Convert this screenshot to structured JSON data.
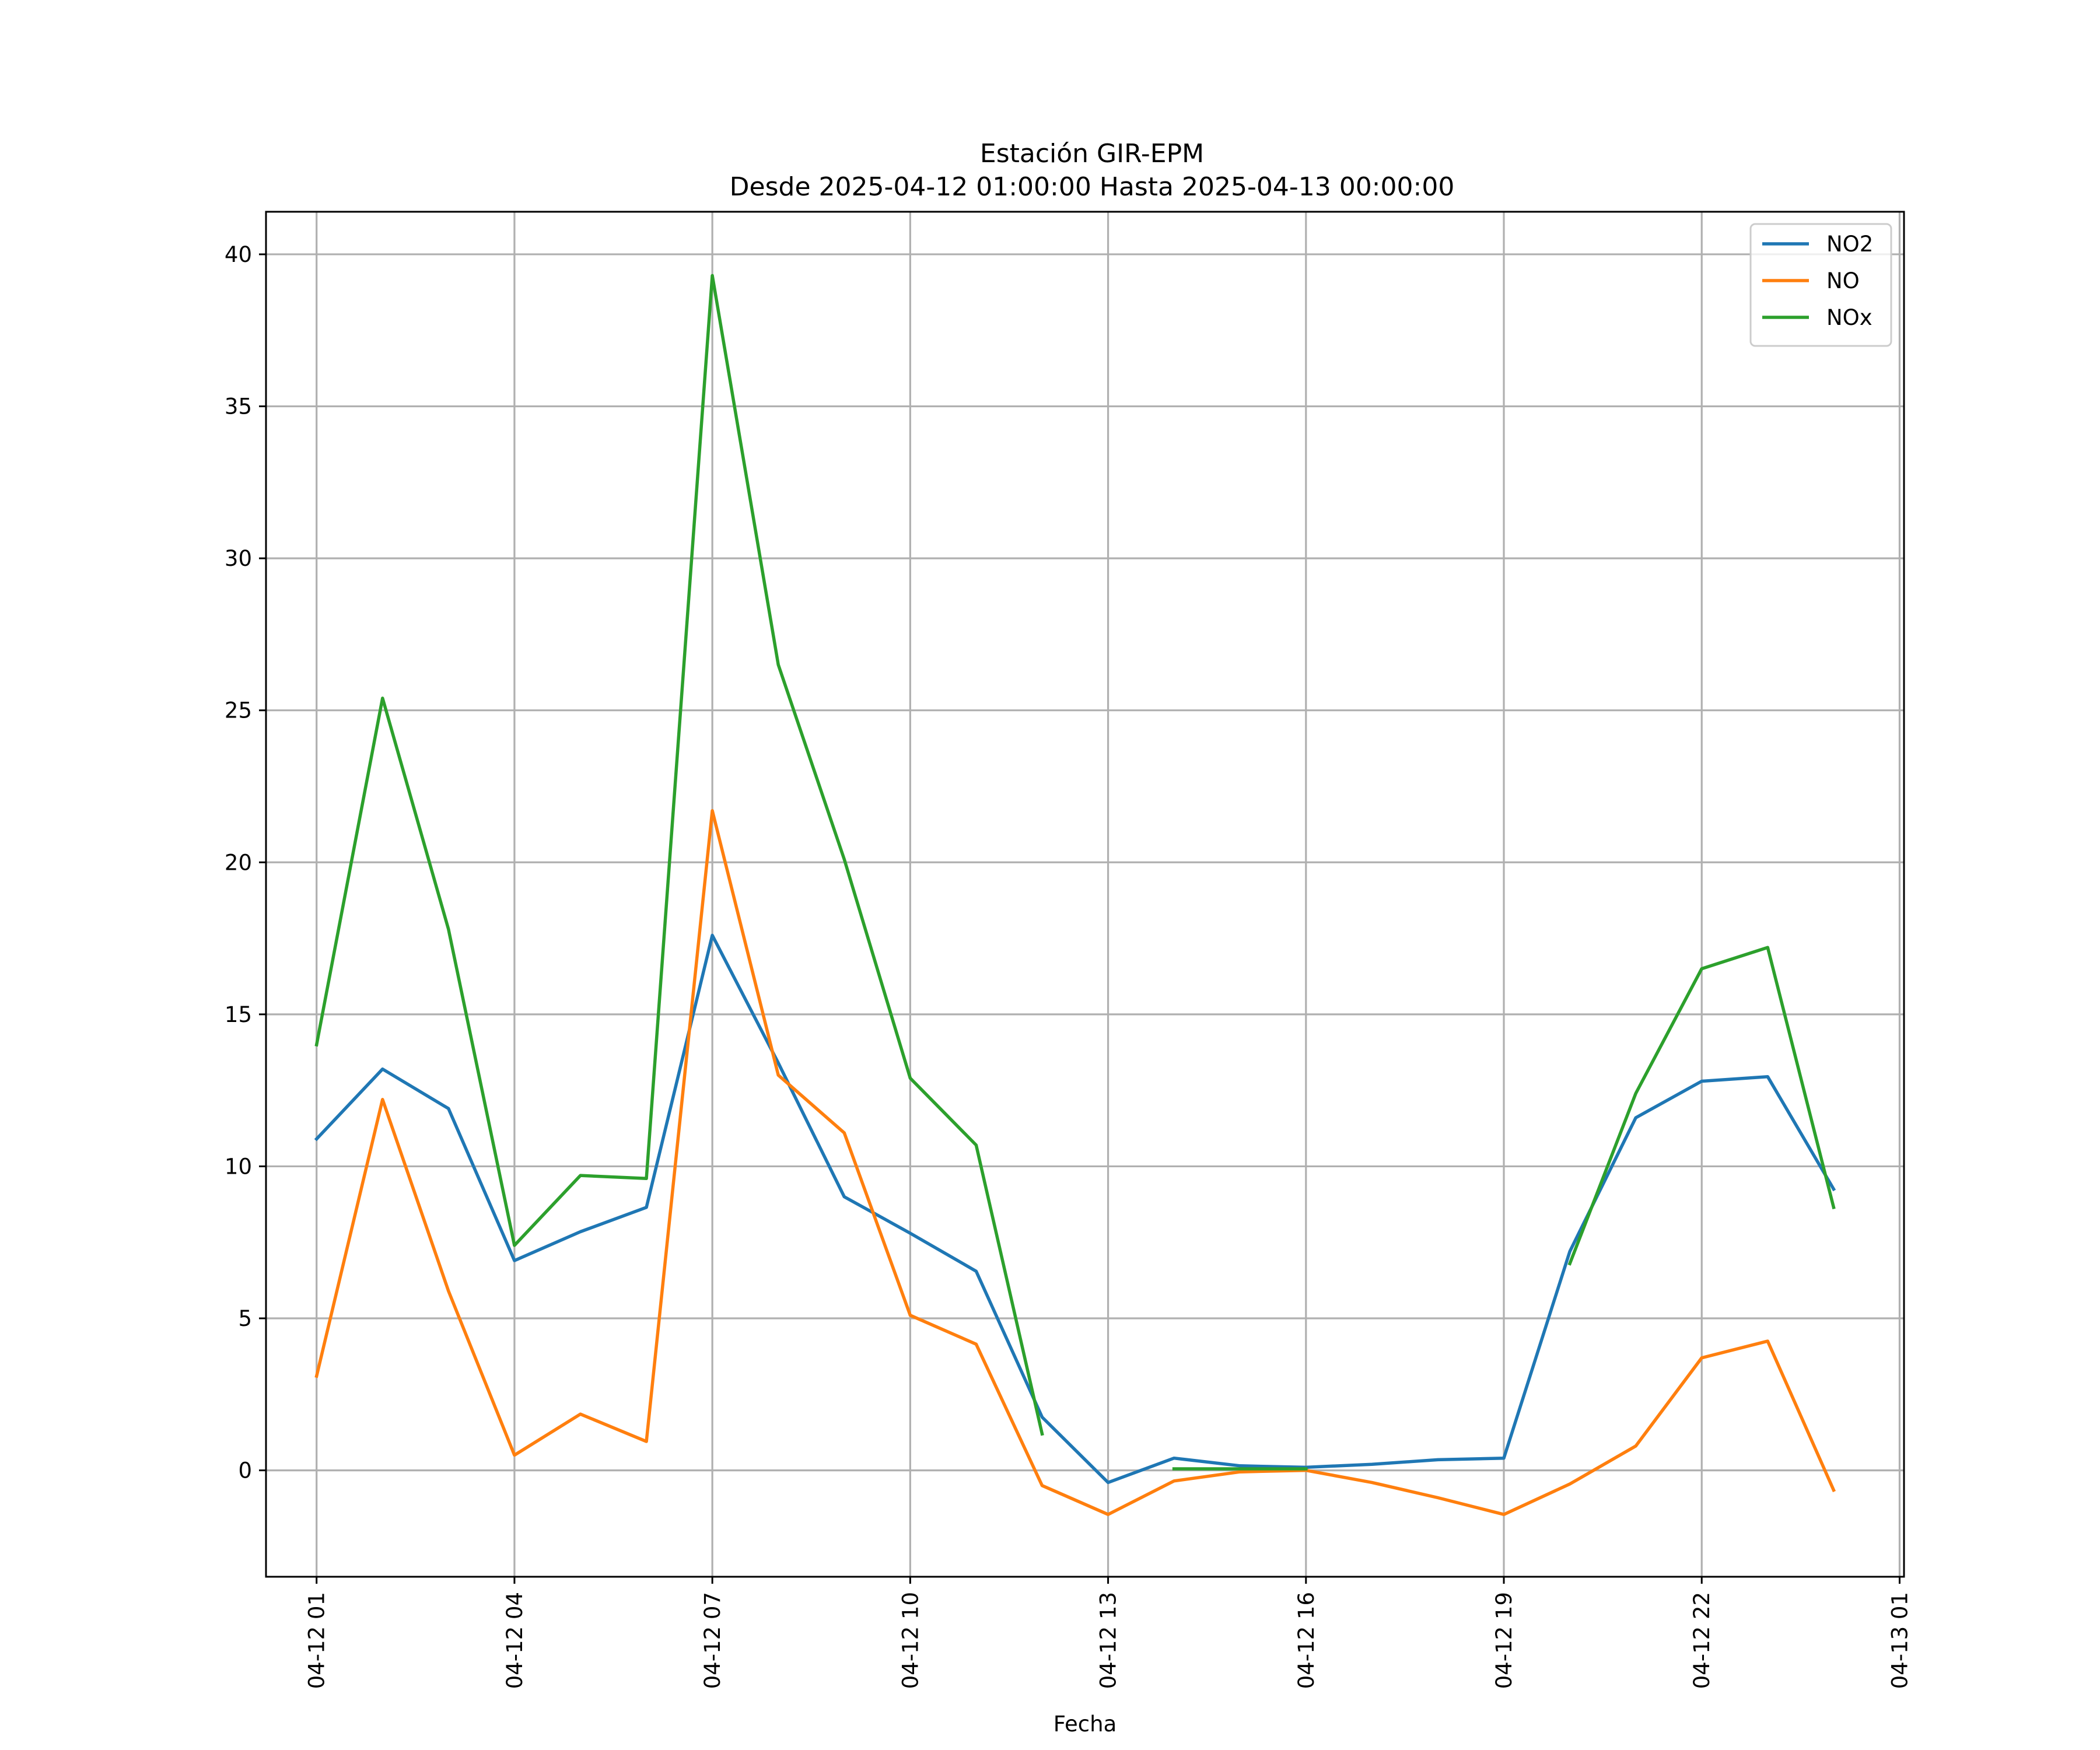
{
  "chart_data": {
    "type": "line",
    "title": "Estación GIR-EPM",
    "subtitle": "Desde 2025-04-12 01:00:00 Hasta 2025-04-13 00:00:00",
    "xlabel": "Fecha",
    "ylabel": "",
    "x": [
      "04-12 01",
      "04-12 02",
      "04-12 03",
      "04-12 04",
      "04-12 05",
      "04-12 06",
      "04-12 07",
      "04-12 08",
      "04-12 09",
      "04-12 10",
      "04-12 11",
      "04-12 12",
      "04-12 13",
      "04-12 14",
      "04-12 15",
      "04-12 16",
      "04-12 17",
      "04-12 18",
      "04-12 19",
      "04-12 20",
      "04-12 21",
      "04-12 22",
      "04-12 23",
      "04-13 00"
    ],
    "x_ticks": [
      "04-12 01",
      "04-12 04",
      "04-12 07",
      "04-12 10",
      "04-12 13",
      "04-12 16",
      "04-12 19",
      "04-12 22",
      "04-13 01"
    ],
    "xlim": [
      "04-12 00:14",
      "04-13 01:04"
    ],
    "y_ticks": [
      0,
      5,
      10,
      15,
      20,
      25,
      30,
      35,
      40
    ],
    "ylim": [
      -3.5,
      41.4
    ],
    "grid": true,
    "legend_position": "top-right",
    "series": [
      {
        "name": "NO2",
        "color": "#1f77b4",
        "values": [
          10.9,
          13.2,
          11.9,
          6.9,
          7.85,
          8.65,
          17.6,
          13.4,
          9.0,
          7.8,
          6.55,
          1.75,
          -0.4,
          0.4,
          0.15,
          0.1,
          0.2,
          0.35,
          0.4,
          7.2,
          11.6,
          12.8,
          12.95,
          9.25
        ]
      },
      {
        "name": "NO",
        "color": "#ff7f0e",
        "values": [
          3.1,
          12.2,
          5.9,
          0.5,
          1.85,
          0.95,
          21.7,
          13.0,
          11.1,
          5.1,
          4.15,
          -0.5,
          -1.45,
          -0.35,
          -0.05,
          0.0,
          -0.4,
          -0.9,
          -1.45,
          -0.45,
          0.8,
          3.7,
          4.25,
          -0.65
        ]
      },
      {
        "name": "NOx",
        "color": "#2ca02c",
        "values": [
          14.0,
          25.4,
          17.8,
          7.4,
          9.7,
          9.6,
          39.3,
          26.5,
          20.1,
          12.9,
          10.7,
          1.2,
          null,
          0.05,
          0.05,
          0.05,
          null,
          null,
          null,
          6.8,
          12.4,
          16.5,
          17.2,
          8.65
        ]
      }
    ]
  }
}
